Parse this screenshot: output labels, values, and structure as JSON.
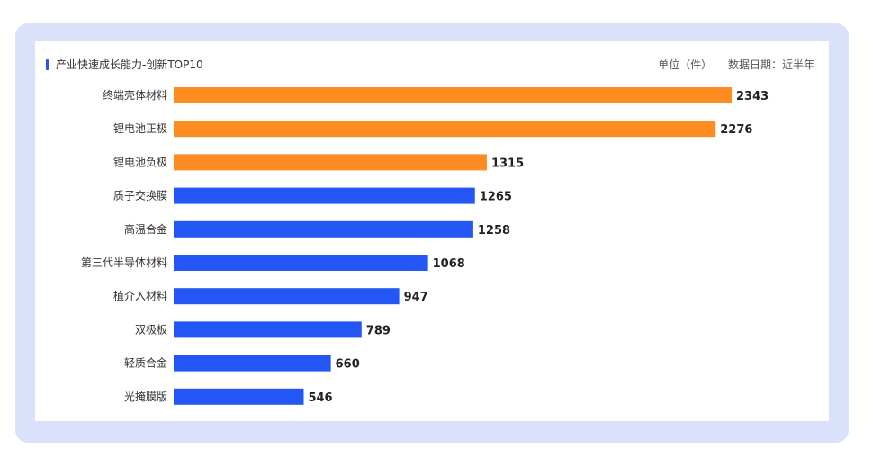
{
  "panel": {
    "title": "产业快速成长能力-创新TOP10",
    "unit_label": "单位（件）",
    "date_label": "数据日期：近半年"
  },
  "colors": {
    "highlight_bar": "#fd8c23",
    "normal_bar": "#2356f5",
    "frame_bg": "#d9e1fb"
  },
  "chart_data": {
    "type": "bar",
    "orientation": "horizontal",
    "title": "产业快速成长能力-创新TOP10",
    "categories": [
      "终端壳体材料",
      "锂电池正极",
      "锂电池负极",
      "质子交换膜",
      "高温合金",
      "第三代半导体材料",
      "植介入材料",
      "双极板",
      "轻质合金",
      "光掩膜版"
    ],
    "values": [
      2343,
      2276,
      1315,
      1265,
      1258,
      1068,
      947,
      789,
      660,
      546
    ],
    "highlight_top_n": 3,
    "xlim": [
      0,
      2343
    ],
    "grid": false,
    "data_labels": true
  }
}
